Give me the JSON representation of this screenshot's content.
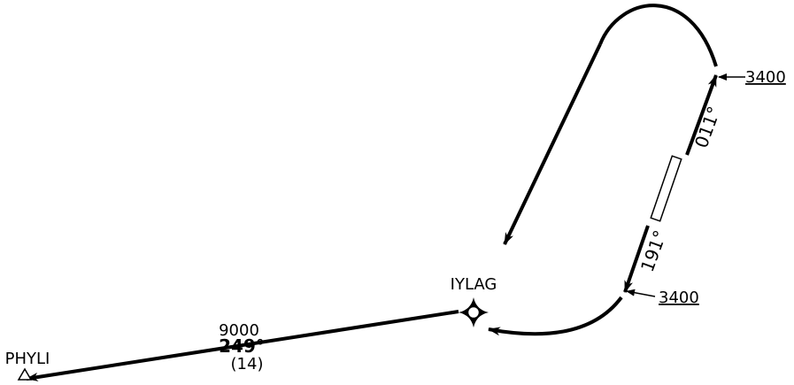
{
  "fixes": {
    "iylag": {
      "name": "IYLAG"
    },
    "phyli": {
      "name": "PHYLI"
    }
  },
  "outbound_leg": {
    "altitude": "9000",
    "course": "249°",
    "distance": "(14)"
  },
  "racetrack": {
    "inbound_course": "011°",
    "outbound_course": "191°",
    "upper_altitude": "3400",
    "lower_altitude": "3400"
  },
  "style": {
    "line_color": "#000000",
    "background": "#ffffff"
  },
  "icons": {
    "iylag_fix": "rnav-waypoint-icon",
    "phyli_fix": "triangle-fix-icon"
  }
}
